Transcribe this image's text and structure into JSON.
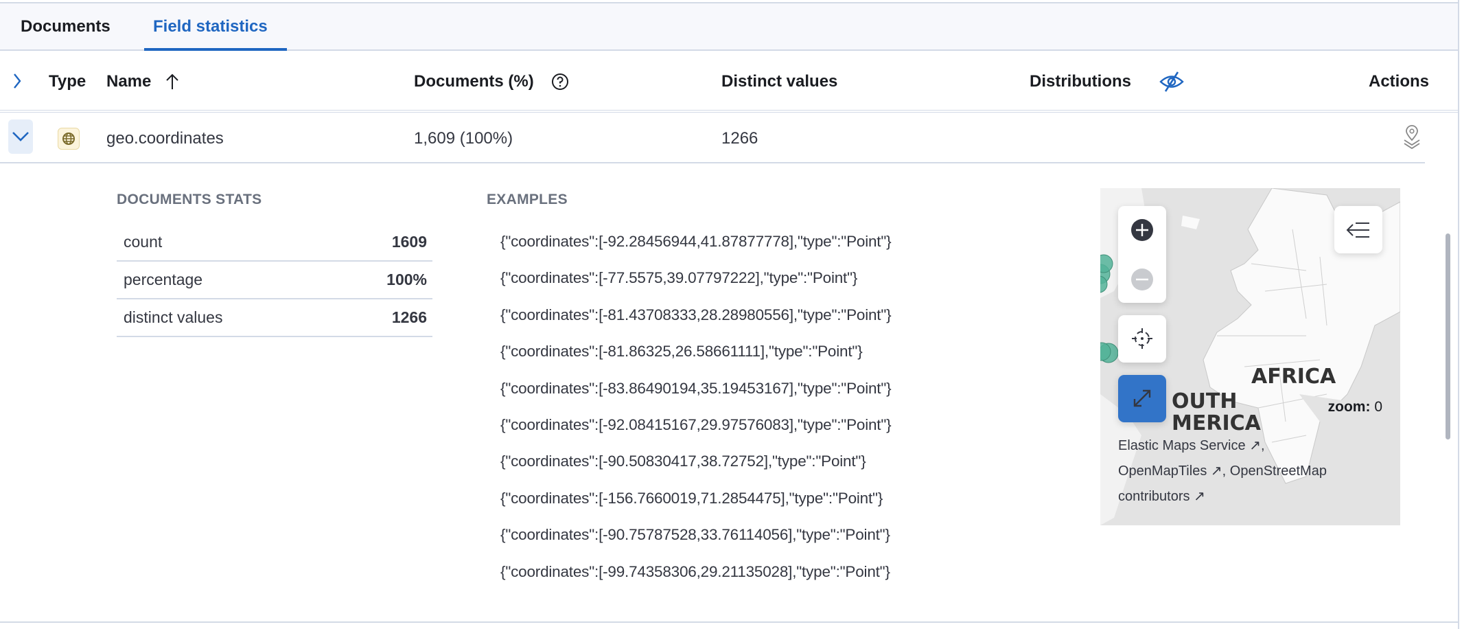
{
  "tabs": [
    {
      "label": "Documents",
      "active": false
    },
    {
      "label": "Field statistics",
      "active": true
    }
  ],
  "table": {
    "headers": {
      "type": "Type",
      "name": "Name",
      "documents": "Documents (%)",
      "distinct": "Distinct values",
      "distributions": "Distributions",
      "actions": "Actions"
    },
    "sort": {
      "column": "Name",
      "direction": "ascending"
    },
    "row": {
      "type_icon": "geo-point-icon",
      "name": "geo.coordinates",
      "documents": "1,609 (100%)",
      "distinct": "1266",
      "action_icon": "map-layers-icon"
    }
  },
  "details": {
    "stats_title": "DOCUMENTS STATS",
    "stats": [
      {
        "label": "count",
        "value": "1609"
      },
      {
        "label": "percentage",
        "value": "100%"
      },
      {
        "label": "distinct values",
        "value": "1266"
      }
    ],
    "examples_title": "EXAMPLES",
    "examples": [
      "{\"coordinates\":[-92.28456944,41.87877778],\"type\":\"Point\"}",
      "{\"coordinates\":[-77.5575,39.07797222],\"type\":\"Point\"}",
      "{\"coordinates\":[-81.43708333,28.28980556],\"type\":\"Point\"}",
      "{\"coordinates\":[-81.86325,26.58661111],\"type\":\"Point\"}",
      "{\"coordinates\":[-83.86490194,35.19453167],\"type\":\"Point\"}",
      "{\"coordinates\":[-92.08415167,29.97576083],\"type\":\"Point\"}",
      "{\"coordinates\":[-90.50830417,38.72752],\"type\":\"Point\"}",
      "{\"coordinates\":[-156.7660019,71.2854475],\"type\":\"Point\"}",
      "{\"coordinates\":[-90.75787528,33.76114056],\"type\":\"Point\"}",
      "{\"coordinates\":[-99.74358306,29.21135028],\"type\":\"Point\"}"
    ],
    "map": {
      "label_africa": "AFRICA",
      "label_south": "OUTH",
      "label_america": "MERICA",
      "zoom_label": "zoom:",
      "zoom_value": "0",
      "attribution": [
        {
          "text": "Elastic Maps Service",
          "suffix": ","
        },
        {
          "text": "OpenMapTiles",
          "suffix": ", OpenStreetMap"
        },
        {
          "text": "contributors",
          "suffix": ""
        }
      ],
      "point_color": "#54b399"
    }
  },
  "colors": {
    "accent": "#1f66c1",
    "fullscreen_button": "#3274c8"
  }
}
